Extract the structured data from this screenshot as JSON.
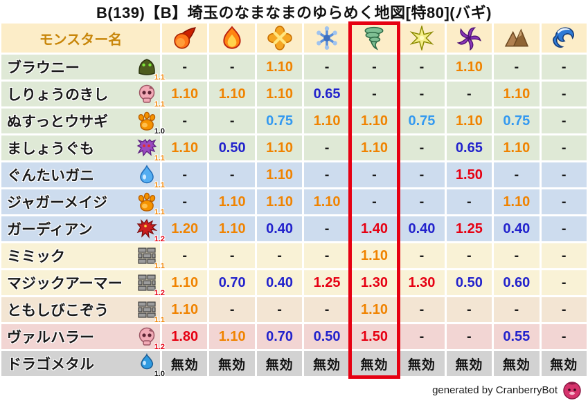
{
  "title": "B(139)【B】埼玉のなまなまのゆらめく地図[特80](バギ)",
  "header": {
    "monster_column_label": "モンスター名",
    "element_icons": [
      "fireball-icon",
      "flame-icon",
      "burst-icon",
      "snowflake-icon",
      "tornado-icon",
      "sparkle-icon",
      "pinwheel-icon",
      "mountain-icon",
      "wave-icon"
    ],
    "highlighted_element_index": 4
  },
  "rows": [
    {
      "name": "ブラウニー",
      "icon": "hood-icon",
      "multiplier_badge": "1.1",
      "group": "green",
      "values": [
        "-",
        "-",
        "1.10",
        "-",
        "-",
        "-",
        "1.10",
        "-",
        "-"
      ]
    },
    {
      "name": "しりょうのきし",
      "icon": "skull-icon",
      "multiplier_badge": "1.1",
      "group": "green",
      "values": [
        "1.10",
        "1.10",
        "1.10",
        "0.65",
        "-",
        "-",
        "-",
        "1.10",
        "-"
      ]
    },
    {
      "name": "ぬすっとウサギ",
      "icon": "paw-icon",
      "multiplier_badge": "1.0",
      "group": "green",
      "values": [
        "-",
        "-",
        "0.75",
        "1.10",
        "1.10",
        "0.75",
        "1.10",
        "0.75",
        "-"
      ]
    },
    {
      "name": "ましょうぐも",
      "icon": "spider-icon",
      "multiplier_badge": "1.1",
      "group": "green",
      "values": [
        "1.10",
        "0.50",
        "1.10",
        "-",
        "1.10",
        "-",
        "0.65",
        "1.10",
        "-"
      ]
    },
    {
      "name": "ぐんたいガニ",
      "icon": "droplet-icon",
      "multiplier_badge": "1.1",
      "group": "blue",
      "values": [
        "-",
        "-",
        "1.10",
        "-",
        "-",
        "-",
        "1.50",
        "-",
        "-"
      ]
    },
    {
      "name": "ジャガーメイジ",
      "icon": "paw-icon",
      "multiplier_badge": "1.1",
      "group": "blue",
      "values": [
        "-",
        "1.10",
        "1.10",
        "1.10",
        "-",
        "-",
        "-",
        "1.10",
        "-"
      ]
    },
    {
      "name": "ガーディアン",
      "icon": "dragon-icon",
      "multiplier_badge": "1.2",
      "group": "blue",
      "values": [
        "1.20",
        "1.10",
        "0.40",
        "-",
        "1.40",
        "0.40",
        "1.25",
        "0.40",
        "-"
      ]
    },
    {
      "name": "ミミック",
      "icon": "brick-icon",
      "multiplier_badge": "1.1",
      "group": "cream",
      "values": [
        "-",
        "-",
        "-",
        "-",
        "1.10",
        "-",
        "-",
        "-",
        "-"
      ]
    },
    {
      "name": "マジックアーマー",
      "icon": "brick-icon",
      "multiplier_badge": "1.2",
      "group": "cream",
      "values": [
        "1.10",
        "0.70",
        "0.40",
        "1.25",
        "1.30",
        "1.30",
        "0.50",
        "0.60",
        "-"
      ]
    },
    {
      "name": "ともしびこぞう",
      "icon": "brick-icon",
      "multiplier_badge": "1.1",
      "group": "tan",
      "values": [
        "1.10",
        "-",
        "-",
        "-",
        "1.10",
        "-",
        "-",
        "-",
        "-"
      ]
    },
    {
      "name": "ヴァルハラー",
      "icon": "skull-icon",
      "multiplier_badge": "1.2",
      "group": "pink",
      "values": [
        "1.80",
        "1.10",
        "0.70",
        "0.50",
        "1.50",
        "-",
        "-",
        "0.55",
        "-"
      ]
    },
    {
      "name": "ドラゴメタル",
      "icon": "slime-icon",
      "multiplier_badge": "1.0",
      "group": "grey",
      "values": [
        "無効",
        "無効",
        "無効",
        "無効",
        "無効",
        "無効",
        "無効",
        "無効",
        "無効"
      ]
    }
  ],
  "footer": {
    "credit": "generated by CranberryBot",
    "icon": "cranberry-icon"
  },
  "colors": {
    "header_bg": "#fcedc8",
    "header_text": "#c8860a",
    "value_increase": "#f08300",
    "value_strong_increase": "#e60012",
    "value_decrease": "#2222cc",
    "value_slight_decrease": "#3399f0",
    "highlight_box": "#e60012",
    "row_groups": {
      "green": "#dfe9d6",
      "blue": "#cddcee",
      "cream": "#f9f2d6",
      "tan": "#f3e5d3",
      "pink": "#f2d5d3",
      "grey": "#d2d2d2"
    },
    "badge_10": "#111111",
    "badge_11": "#f08300",
    "badge_12": "#e60012"
  }
}
